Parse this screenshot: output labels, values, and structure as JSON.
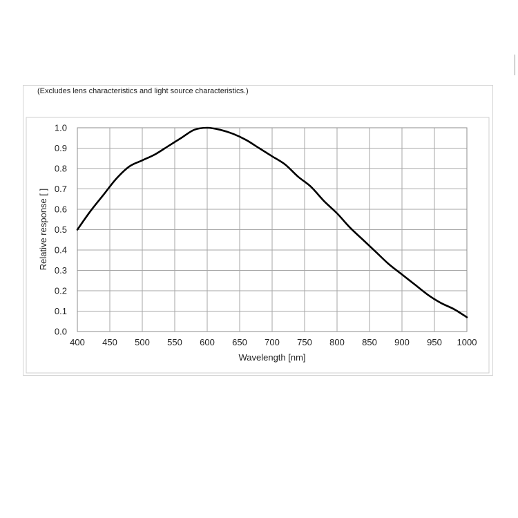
{
  "caption": "(Excludes lens characteristics and light source characteristics.)",
  "colors": {
    "curve": "#000000",
    "grid": "#a6a6a6",
    "plot_border": "#8c8c8c",
    "text": "#222222"
  },
  "chart_data": {
    "type": "line",
    "title": "",
    "xlabel": "Wavelength [nm]",
    "ylabel": "Relative response [ ]",
    "xlim": [
      400,
      1000
    ],
    "ylim": [
      0.0,
      1.0
    ],
    "grid": true,
    "x_ticks": [
      400,
      450,
      500,
      550,
      600,
      650,
      700,
      750,
      800,
      850,
      900,
      950,
      1000
    ],
    "x_tick_labels": [
      "400",
      "450",
      "500",
      "550",
      "600",
      "650",
      "700",
      "750",
      "800",
      "850",
      "900",
      "950",
      "1000"
    ],
    "y_ticks": [
      0.0,
      0.1,
      0.2,
      0.3,
      0.4,
      0.5,
      0.6,
      0.7,
      0.8,
      0.9,
      1.0
    ],
    "y_tick_labels": [
      "0.0",
      "0.1",
      "0.2",
      "0.3",
      "0.4",
      "0.5",
      "0.6",
      "0.7",
      "0.8",
      "0.9",
      "1.0"
    ],
    "series": [
      {
        "x": [
          400,
          420,
          440,
          460,
          480,
          500,
          520,
          540,
          560,
          580,
          600,
          620,
          640,
          660,
          680,
          700,
          720,
          740,
          760,
          780,
          800,
          820,
          840,
          860,
          880,
          900,
          920,
          940,
          960,
          980,
          1000
        ],
        "y": [
          0.5,
          0.59,
          0.67,
          0.75,
          0.81,
          0.84,
          0.87,
          0.91,
          0.95,
          0.99,
          1.0,
          0.99,
          0.97,
          0.94,
          0.9,
          0.86,
          0.82,
          0.76,
          0.71,
          0.64,
          0.58,
          0.51,
          0.45,
          0.39,
          0.33,
          0.28,
          0.23,
          0.18,
          0.14,
          0.11,
          0.07
        ]
      }
    ]
  }
}
